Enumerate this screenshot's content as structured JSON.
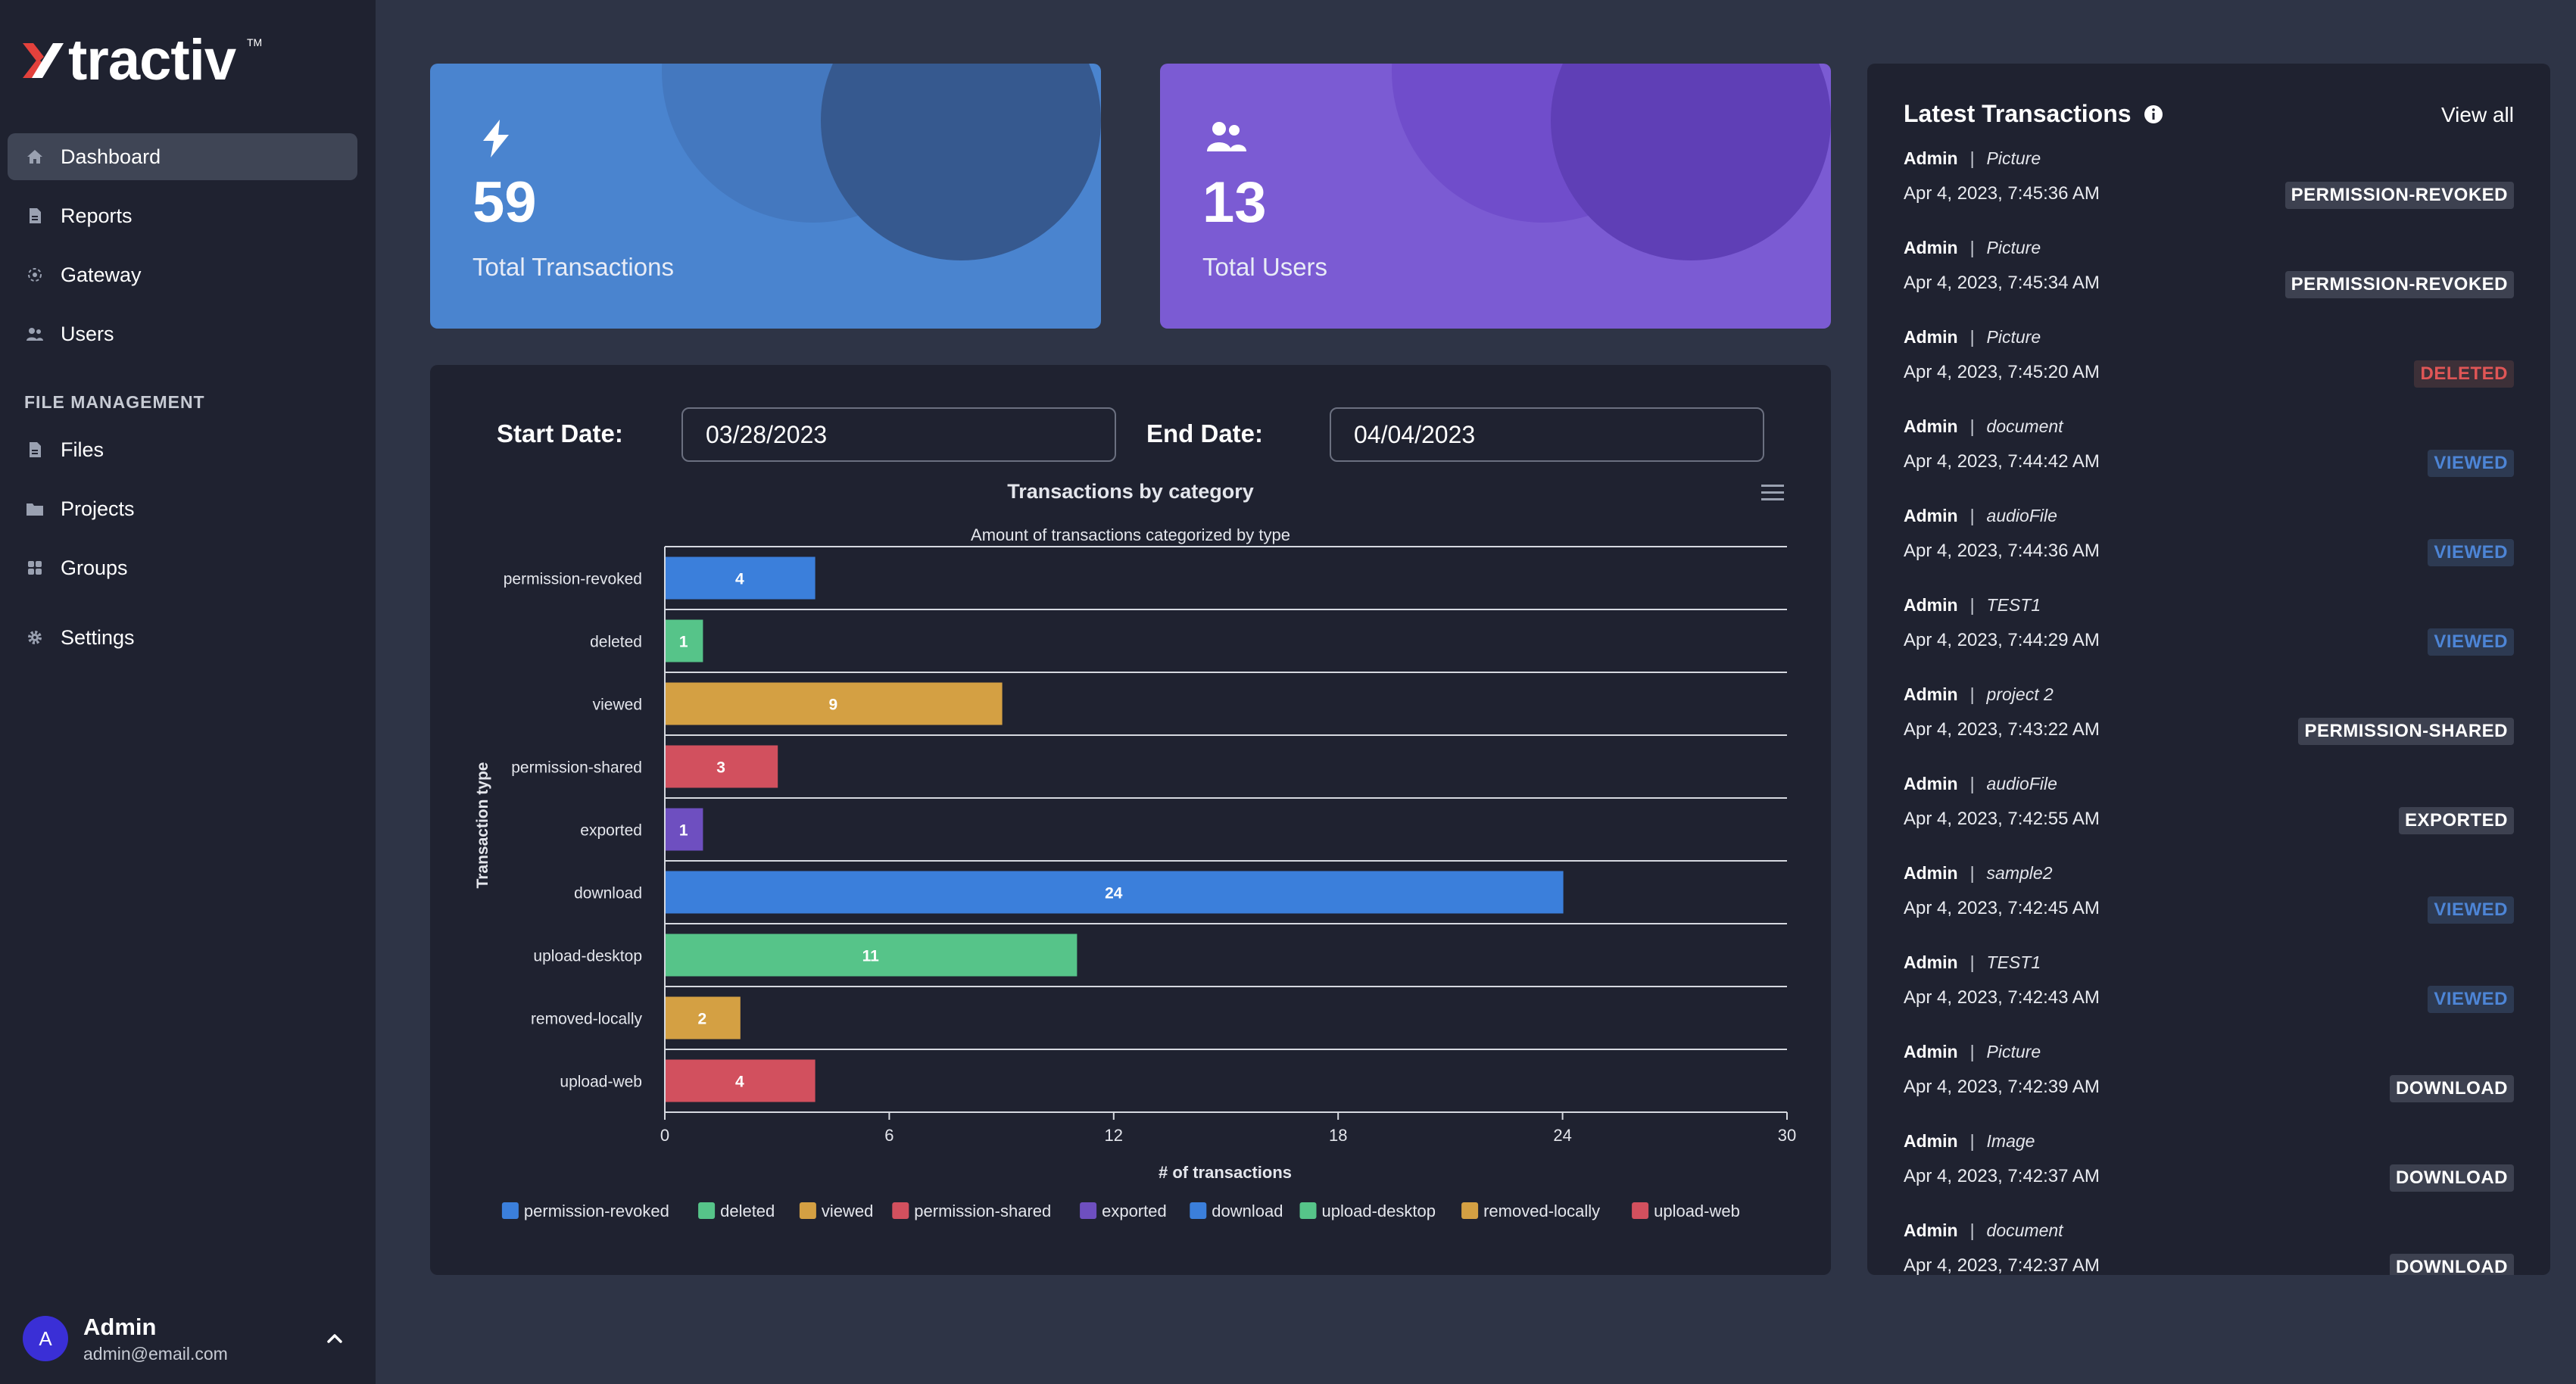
{
  "app": {
    "brand": "tractiv",
    "tm": "TM"
  },
  "sidebar": {
    "items": [
      {
        "label": "Dashboard",
        "icon": "home-icon",
        "active": true
      },
      {
        "label": "Reports",
        "icon": "report-icon"
      },
      {
        "label": "Gateway",
        "icon": "gateway-icon"
      },
      {
        "label": "Users",
        "icon": "users-icon"
      }
    ],
    "section_title": "FILE MANAGEMENT",
    "file_items": [
      {
        "label": "Files",
        "icon": "file-icon"
      },
      {
        "label": "Projects",
        "icon": "folder-icon"
      },
      {
        "label": "Groups",
        "icon": "grid-icon"
      }
    ],
    "settings": {
      "label": "Settings",
      "icon": "gear-icon"
    }
  },
  "user": {
    "initial": "A",
    "name": "Admin",
    "email": "admin@email.com"
  },
  "stats": {
    "transactions": {
      "value": "59",
      "label": "Total Transactions",
      "icon": "bolt-icon"
    },
    "users": {
      "value": "13",
      "label": "Total Users",
      "icon": "users-icon"
    }
  },
  "filters": {
    "start_label": "Start Date:",
    "start_value": "03/28/2023",
    "end_label": "End Date:",
    "end_value": "04/04/2023"
  },
  "chart_data": {
    "type": "bar",
    "orientation": "horizontal",
    "title": "Transactions by category",
    "subtitle": "Amount of transactions categorized by type",
    "xlabel": "# of transactions",
    "ylabel": "Transaction type",
    "xlim": [
      0,
      30
    ],
    "xticks": [
      0,
      6,
      12,
      18,
      24,
      30
    ],
    "categories": [
      "permission-revoked",
      "deleted",
      "viewed",
      "permission-shared",
      "exported",
      "download",
      "upload-desktop",
      "removed-locally",
      "upload-web"
    ],
    "values": [
      4,
      1,
      9,
      3,
      1,
      24,
      11,
      2,
      4
    ],
    "colors": [
      "#3b7fdb",
      "#56c489",
      "#d4a043",
      "#d2505e",
      "#6e4fc0",
      "#3b7fdb",
      "#56c489",
      "#d4a043",
      "#d2505e"
    ],
    "legend": [
      "permission-revoked",
      "deleted",
      "viewed",
      "permission-shared",
      "exported",
      "download",
      "upload-desktop",
      "removed-locally",
      "upload-web"
    ],
    "legend_position": "bottom",
    "grid": true
  },
  "transactions": {
    "title": "Latest Transactions",
    "view_all": "View all",
    "items": [
      {
        "user": "Admin",
        "file": "Picture",
        "time": "Apr 4, 2023, 7:45:36 AM",
        "action": "PERMISSION-REVOKED",
        "color": "#ffffff",
        "bg": "#3d4150"
      },
      {
        "user": "Admin",
        "file": "Picture",
        "time": "Apr 4, 2023, 7:45:34 AM",
        "action": "PERMISSION-REVOKED",
        "color": "#ffffff",
        "bg": "#3d4150"
      },
      {
        "user": "Admin",
        "file": "Picture",
        "time": "Apr 4, 2023, 7:45:20 AM",
        "action": "DELETED",
        "color": "#e05656",
        "bg": "#3d3038"
      },
      {
        "user": "Admin",
        "file": "document",
        "time": "Apr 4, 2023, 7:44:42 AM",
        "action": "VIEWED",
        "color": "#4d85d6",
        "bg": "#2d3a52"
      },
      {
        "user": "Admin",
        "file": "audioFile",
        "time": "Apr 4, 2023, 7:44:36 AM",
        "action": "VIEWED",
        "color": "#4d85d6",
        "bg": "#2d3a52"
      },
      {
        "user": "Admin",
        "file": "TEST1",
        "time": "Apr 4, 2023, 7:44:29 AM",
        "action": "VIEWED",
        "color": "#4d85d6",
        "bg": "#2d3a52"
      },
      {
        "user": "Admin",
        "file": "project 2",
        "time": "Apr 4, 2023, 7:43:22 AM",
        "action": "PERMISSION-SHARED",
        "color": "#ffffff",
        "bg": "#3d4150"
      },
      {
        "user": "Admin",
        "file": "audioFile",
        "time": "Apr 4, 2023, 7:42:55 AM",
        "action": "EXPORTED",
        "color": "#ffffff",
        "bg": "#3d4150"
      },
      {
        "user": "Admin",
        "file": "sample2",
        "time": "Apr 4, 2023, 7:42:45 AM",
        "action": "VIEWED",
        "color": "#4d85d6",
        "bg": "#2d3a52"
      },
      {
        "user": "Admin",
        "file": "TEST1",
        "time": "Apr 4, 2023, 7:42:43 AM",
        "action": "VIEWED",
        "color": "#4d85d6",
        "bg": "#2d3a52"
      },
      {
        "user": "Admin",
        "file": "Picture",
        "time": "Apr 4, 2023, 7:42:39 AM",
        "action": "DOWNLOAD",
        "color": "#ffffff",
        "bg": "#3d4150"
      },
      {
        "user": "Admin",
        "file": "Image",
        "time": "Apr 4, 2023, 7:42:37 AM",
        "action": "DOWNLOAD",
        "color": "#ffffff",
        "bg": "#3d4150"
      },
      {
        "user": "Admin",
        "file": "document",
        "time": "Apr 4, 2023, 7:42:37 AM",
        "action": "DOWNLOAD",
        "color": "#ffffff",
        "bg": "#3d4150"
      }
    ]
  }
}
